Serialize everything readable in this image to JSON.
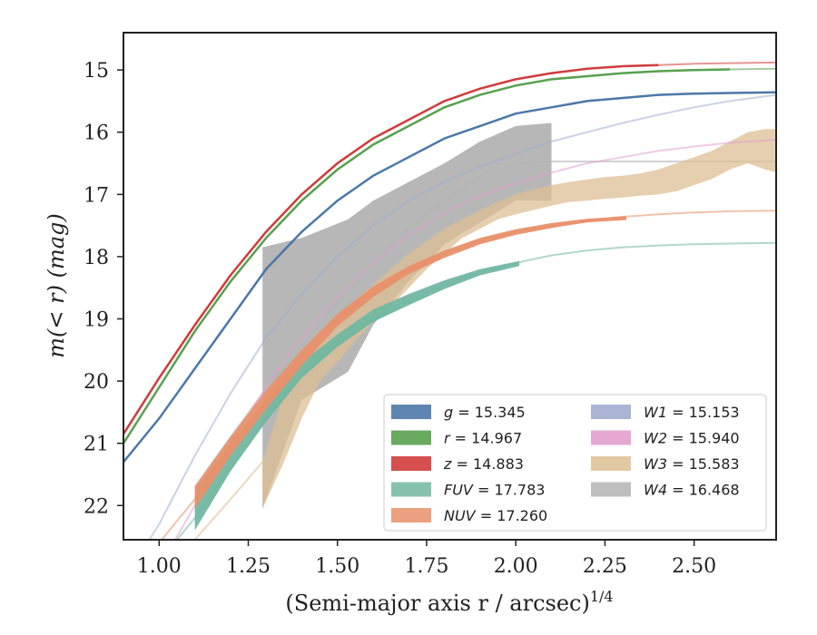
{
  "chart_data": {
    "type": "line",
    "xlabel": "(Semi-major axis r / arcsec)",
    "xlabel_sup": "1/4",
    "ylabel": "m(< r) (mag)",
    "xlim": [
      0.9,
      2.73
    ],
    "ylim": [
      22.55,
      14.4
    ],
    "y_inverted": true,
    "grid": false,
    "legend_position": "lower-right",
    "x_ticks": [
      "1.00",
      "1.25",
      "1.50",
      "1.75",
      "2.00",
      "2.25",
      "2.50"
    ],
    "y_ticks": [
      "15",
      "16",
      "17",
      "18",
      "19",
      "20",
      "21",
      "22"
    ],
    "series": [
      {
        "name": "g",
        "legend": "15.345",
        "color": "#4c78a8",
        "kind": "line",
        "x": [
          0.9,
          1.0,
          1.1,
          1.2,
          1.3,
          1.4,
          1.5,
          1.6,
          1.7,
          1.8,
          1.9,
          2.0,
          2.1,
          2.2,
          2.3,
          2.4,
          2.5,
          2.6,
          2.73
        ],
        "y": [
          21.3,
          20.6,
          19.8,
          19.0,
          18.2,
          17.6,
          17.1,
          16.7,
          16.4,
          16.1,
          15.9,
          15.7,
          15.6,
          15.5,
          15.45,
          15.4,
          15.38,
          15.37,
          15.36
        ],
        "solid_until": 2.73
      },
      {
        "name": "r",
        "legend": "14.967",
        "color": "#59a14f",
        "kind": "line",
        "x": [
          0.9,
          1.0,
          1.1,
          1.2,
          1.3,
          1.4,
          1.5,
          1.6,
          1.7,
          1.8,
          1.9,
          2.0,
          2.1,
          2.2,
          2.3,
          2.4,
          2.5,
          2.6,
          2.73
        ],
        "y": [
          21.0,
          20.1,
          19.2,
          18.4,
          17.7,
          17.1,
          16.6,
          16.2,
          15.9,
          15.6,
          15.4,
          15.25,
          15.15,
          15.1,
          15.05,
          15.02,
          15.0,
          14.99,
          14.98
        ],
        "solid_until": 2.64
      },
      {
        "name": "z",
        "legend": "14.883",
        "color": "#d03c3c",
        "kind": "line",
        "x": [
          0.9,
          1.0,
          1.1,
          1.2,
          1.3,
          1.4,
          1.5,
          1.6,
          1.7,
          1.8,
          1.9,
          2.0,
          2.1,
          2.2,
          2.3,
          2.4,
          2.5,
          2.6,
          2.73
        ],
        "y": [
          20.85,
          19.95,
          19.1,
          18.3,
          17.6,
          17.0,
          16.5,
          16.1,
          15.8,
          15.5,
          15.3,
          15.15,
          15.05,
          14.98,
          14.94,
          14.92,
          14.9,
          14.89,
          14.88
        ],
        "solid_until": 2.43
      },
      {
        "name": "FUV",
        "legend": "17.783",
        "color": "#72b7a1",
        "kind": "line",
        "x": [
          0.9,
          1.0,
          1.1,
          1.2,
          1.3,
          1.4,
          1.5,
          1.6,
          1.7,
          1.8,
          1.9,
          2.0,
          2.1,
          2.2,
          2.3,
          2.4,
          2.5,
          2.6,
          2.73
        ],
        "y": [
          23.5,
          22.9,
          22.2,
          21.4,
          20.6,
          19.9,
          19.4,
          19.0,
          18.7,
          18.45,
          18.25,
          18.1,
          17.98,
          17.9,
          17.85,
          17.82,
          17.8,
          17.79,
          17.78
        ],
        "band_x": [
          1.1,
          1.2,
          1.3,
          1.4,
          1.5,
          1.6,
          1.7,
          1.8,
          1.9,
          2.01
        ],
        "band_lo": [
          21.75,
          21.0,
          20.3,
          19.7,
          19.25,
          18.85,
          18.6,
          18.38,
          18.2,
          18.07
        ],
        "band_hi": [
          22.4,
          21.45,
          20.65,
          19.95,
          19.45,
          19.05,
          18.78,
          18.52,
          18.3,
          18.15
        ]
      },
      {
        "name": "NUV",
        "legend": "17.260",
        "color": "#e8906a",
        "kind": "line",
        "x": [
          0.9,
          1.0,
          1.1,
          1.2,
          1.3,
          1.4,
          1.5,
          1.6,
          1.7,
          1.8,
          1.9,
          2.0,
          2.1,
          2.2,
          2.3,
          2.4,
          2.5,
          2.6,
          2.73
        ],
        "y": [
          23.2,
          22.6,
          21.9,
          21.1,
          20.3,
          19.6,
          19.0,
          18.55,
          18.2,
          17.95,
          17.75,
          17.6,
          17.5,
          17.42,
          17.36,
          17.32,
          17.29,
          17.27,
          17.26
        ],
        "band_x": [
          1.1,
          1.2,
          1.3,
          1.4,
          1.5,
          1.6,
          1.7,
          1.8,
          1.9,
          2.0,
          2.1,
          2.2,
          2.31
        ],
        "band_lo": [
          21.7,
          20.9,
          20.15,
          19.5,
          18.92,
          18.48,
          18.15,
          17.9,
          17.7,
          17.56,
          17.46,
          17.39,
          17.35
        ],
        "band_hi": [
          22.05,
          21.2,
          20.45,
          19.75,
          19.12,
          18.65,
          18.28,
          18.02,
          17.8,
          17.65,
          17.54,
          17.45,
          17.41
        ]
      },
      {
        "name": "W1",
        "legend": "15.153",
        "color": "#a1add0",
        "kind": "line",
        "x": [
          0.9,
          1.0,
          1.1,
          1.2,
          1.3,
          1.4,
          1.5,
          1.6,
          1.7,
          1.8,
          1.9,
          2.0,
          2.1,
          2.2,
          2.3,
          2.4,
          2.5,
          2.6,
          2.73
        ],
        "y": [
          23.2,
          22.3,
          21.2,
          20.2,
          19.3,
          18.6,
          18.0,
          17.5,
          17.1,
          16.8,
          16.55,
          16.35,
          16.15,
          16.0,
          15.85,
          15.72,
          15.6,
          15.5,
          15.4
        ]
      },
      {
        "name": "W2",
        "legend": "15.940",
        "color": "#e39fce",
        "kind": "line",
        "x": [
          0.9,
          1.0,
          1.1,
          1.2,
          1.3,
          1.4,
          1.5,
          1.6,
          1.7,
          1.8,
          1.9,
          2.0,
          2.1,
          2.2,
          2.3,
          2.4,
          2.5,
          2.6,
          2.73
        ],
        "y": [
          24.0,
          23.0,
          22.0,
          21.0,
          20.1,
          19.3,
          18.65,
          18.1,
          17.65,
          17.3,
          17.02,
          16.82,
          16.65,
          16.5,
          16.4,
          16.3,
          16.23,
          16.17,
          16.12
        ]
      },
      {
        "name": "W3",
        "legend": "15.583",
        "color": "#ddbf94",
        "kind": "band",
        "x": [
          1.29,
          1.35,
          1.4,
          1.45,
          1.5,
          1.55,
          1.6,
          1.65,
          1.7,
          1.75,
          1.8,
          1.85,
          1.9,
          1.95,
          2.0,
          2.05,
          2.1,
          2.15,
          2.2,
          2.25,
          2.3,
          2.35,
          2.4,
          2.45,
          2.5,
          2.55,
          2.6,
          2.65,
          2.7,
          2.73
        ],
        "lo": [
          21.3,
          20.2,
          19.7,
          19.35,
          19.0,
          18.7,
          18.45,
          18.2,
          17.95,
          17.75,
          17.55,
          17.4,
          17.25,
          17.12,
          17.0,
          16.92,
          16.85,
          16.8,
          16.76,
          16.72,
          16.7,
          16.66,
          16.6,
          16.5,
          16.4,
          16.3,
          16.15,
          16.0,
          15.95,
          15.95
        ],
        "hi": [
          22.05,
          21.3,
          20.6,
          20.0,
          19.7,
          19.35,
          19.05,
          18.8,
          18.5,
          18.2,
          17.95,
          17.7,
          17.55,
          17.4,
          17.32,
          17.25,
          17.18,
          17.12,
          17.1,
          17.07,
          17.05,
          17.02,
          17.0,
          16.95,
          16.85,
          16.75,
          16.6,
          16.5,
          16.6,
          16.65
        ],
        "line_x": [
          1.1,
          1.2,
          1.29
        ],
        "line_y": [
          22.55,
          21.9,
          21.3
        ]
      },
      {
        "name": "W4",
        "legend": "16.468",
        "color": "#b3b3b3",
        "kind": "band",
        "x": [
          1.29,
          1.4,
          1.53,
          1.6,
          1.7,
          1.8,
          1.9,
          2.0,
          2.1
        ],
        "lo": [
          17.85,
          17.7,
          17.4,
          17.1,
          16.8,
          16.5,
          16.15,
          15.9,
          15.85
        ],
        "hi": [
          22.05,
          20.3,
          19.85,
          19.1,
          18.4,
          17.8,
          17.45,
          17.1,
          17.1
        ],
        "line_x": [
          1.1,
          1.2,
          1.29,
          1.4,
          1.5,
          1.6,
          1.7,
          1.8,
          1.9,
          2.0,
          2.1,
          2.2,
          2.4,
          2.6,
          2.73
        ],
        "line_y": [
          21.7,
          20.9,
          20.2,
          19.45,
          18.75,
          18.1,
          17.55,
          17.1,
          16.7,
          16.5,
          16.47,
          16.47,
          16.47,
          16.47,
          16.47
        ]
      }
    ]
  }
}
